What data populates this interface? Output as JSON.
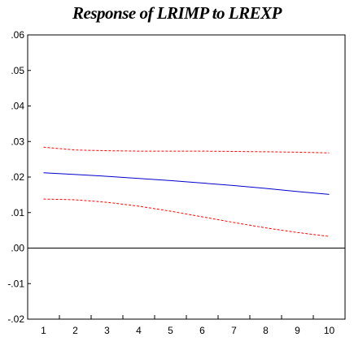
{
  "chart_data": {
    "type": "line",
    "title": "Response of LRIMP to LREXP",
    "xlabel": "",
    "ylabel": "",
    "x": [
      1,
      2,
      3,
      4,
      5,
      6,
      7,
      8,
      9,
      10
    ],
    "xtick_labels": [
      "1",
      "2",
      "3",
      "4",
      "5",
      "6",
      "7",
      "8",
      "9",
      "10"
    ],
    "ylim": [
      -0.02,
      0.06
    ],
    "yticks": [
      0.06,
      0.05,
      0.04,
      0.03,
      0.02,
      0.01,
      0.0,
      -0.01,
      -0.02
    ],
    "ytick_labels": [
      ".06",
      ".05",
      ".04",
      ".03",
      ".02",
      ".01",
      ".00",
      "-.01",
      "-.02"
    ],
    "zero_line": 0.0,
    "grid": false,
    "series": [
      {
        "values": [
          0.0284,
          0.0276,
          0.0274,
          0.0273,
          0.0273,
          0.0273,
          0.0272,
          0.0271,
          0.027,
          0.0268
        ],
        "color": "#ff0000",
        "style": "dashed"
      },
      {
        "values": [
          0.0212,
          0.0207,
          0.0202,
          0.0196,
          0.019,
          0.0183,
          0.0176,
          0.0168,
          0.0159,
          0.0151
        ],
        "color": "#0000cc",
        "style": "solid"
      },
      {
        "values": [
          0.0138,
          0.0136,
          0.0129,
          0.0118,
          0.0104,
          0.0088,
          0.0072,
          0.0057,
          0.0044,
          0.0033
        ],
        "color": "#ff0000",
        "style": "dashed"
      }
    ]
  }
}
